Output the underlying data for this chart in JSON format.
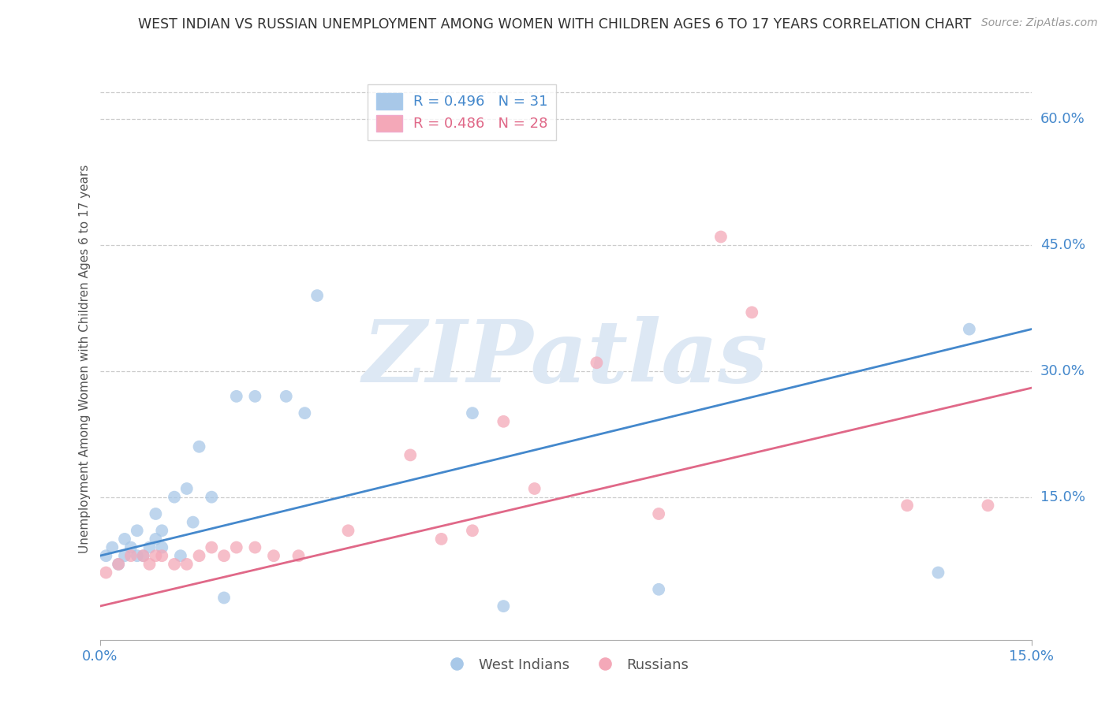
{
  "title": "WEST INDIAN VS RUSSIAN UNEMPLOYMENT AMONG WOMEN WITH CHILDREN AGES 6 TO 17 YEARS CORRELATION CHART",
  "source": "Source: ZipAtlas.com",
  "ylabel": "Unemployment Among Women with Children Ages 6 to 17 years",
  "legend_label_blue": "West Indians",
  "legend_label_pink": "Russians",
  "blue_color": "#a8c8e8",
  "pink_color": "#f4a8b8",
  "blue_line_color": "#4488cc",
  "pink_line_color": "#e06888",
  "title_color": "#333333",
  "axis_label_color": "#555555",
  "tick_color_blue": "#4488cc",
  "watermark_text": "ZIPatlas",
  "watermark_color": "#dde8f4",
  "background_color": "#ffffff",
  "grid_color": "#cccccc",
  "xlim": [
    0.0,
    0.15
  ],
  "ylim": [
    -0.02,
    0.65
  ],
  "blue_R": 0.496,
  "blue_N": 31,
  "pink_R": 0.486,
  "pink_N": 28,
  "marker_size": 130,
  "west_indians_x": [
    0.001,
    0.002,
    0.003,
    0.004,
    0.004,
    0.005,
    0.006,
    0.006,
    0.007,
    0.008,
    0.009,
    0.009,
    0.01,
    0.01,
    0.012,
    0.013,
    0.014,
    0.015,
    0.016,
    0.018,
    0.02,
    0.022,
    0.025,
    0.03,
    0.033,
    0.035,
    0.06,
    0.065,
    0.09,
    0.135,
    0.14
  ],
  "west_indians_y": [
    0.08,
    0.09,
    0.07,
    0.08,
    0.1,
    0.09,
    0.08,
    0.11,
    0.08,
    0.09,
    0.1,
    0.13,
    0.09,
    0.11,
    0.15,
    0.08,
    0.16,
    0.12,
    0.21,
    0.15,
    0.03,
    0.27,
    0.27,
    0.27,
    0.25,
    0.39,
    0.25,
    0.02,
    0.04,
    0.06,
    0.35
  ],
  "russians_x": [
    0.001,
    0.003,
    0.005,
    0.007,
    0.008,
    0.009,
    0.01,
    0.012,
    0.014,
    0.016,
    0.018,
    0.02,
    0.022,
    0.025,
    0.028,
    0.032,
    0.04,
    0.05,
    0.055,
    0.06,
    0.065,
    0.07,
    0.08,
    0.09,
    0.1,
    0.105,
    0.13,
    0.143
  ],
  "russians_y": [
    0.06,
    0.07,
    0.08,
    0.08,
    0.07,
    0.08,
    0.08,
    0.07,
    0.07,
    0.08,
    0.09,
    0.08,
    0.09,
    0.09,
    0.08,
    0.08,
    0.11,
    0.2,
    0.1,
    0.11,
    0.24,
    0.16,
    0.31,
    0.13,
    0.46,
    0.37,
    0.14,
    0.14
  ],
  "blue_line_x0": 0.0,
  "blue_line_y0": 0.08,
  "blue_line_x1": 0.15,
  "blue_line_y1": 0.35,
  "pink_line_x0": 0.0,
  "pink_line_y0": 0.02,
  "pink_line_x1": 0.15,
  "pink_line_y1": 0.28
}
